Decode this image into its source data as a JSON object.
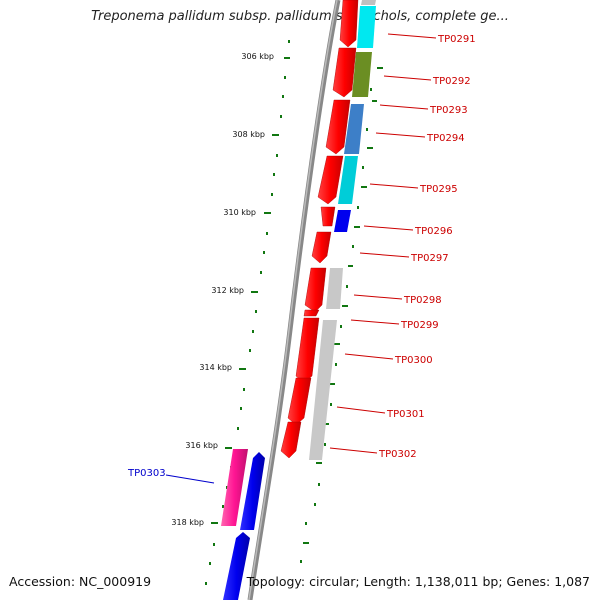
{
  "title": "Treponema pallidum subsp. pallidum str. Nichols, complete ge...",
  "accession": "Accession: NC_000919",
  "topology": "Topology: circular; Length: 1,138,011 bp; Genes: 1,087",
  "colors": {
    "label_plus": "#cc0000",
    "label_minus": "#0000cc",
    "tick": "#117711",
    "backbone": "#777777"
  },
  "kbp_labels": [
    "306 kbp",
    "308 kbp",
    "310 kbp",
    "312 kbp",
    "314 kbp",
    "316 kbp",
    "318 kbp"
  ],
  "gene_labels": [
    {
      "text": "TP0291",
      "strand": "plus"
    },
    {
      "text": "TP0292",
      "strand": "plus"
    },
    {
      "text": "TP0293",
      "strand": "plus"
    },
    {
      "text": "TP0294",
      "strand": "plus"
    },
    {
      "text": "TP0295",
      "strand": "plus"
    },
    {
      "text": "TP0296",
      "strand": "plus"
    },
    {
      "text": "TP0297",
      "strand": "plus"
    },
    {
      "text": "TP0298",
      "strand": "plus"
    },
    {
      "text": "TP0299",
      "strand": "plus"
    },
    {
      "text": "TP0300",
      "strand": "plus"
    },
    {
      "text": "TP0301",
      "strand": "plus"
    },
    {
      "text": "TP0302",
      "strand": "plus"
    },
    {
      "text": "TP0303",
      "strand": "minus"
    }
  ]
}
